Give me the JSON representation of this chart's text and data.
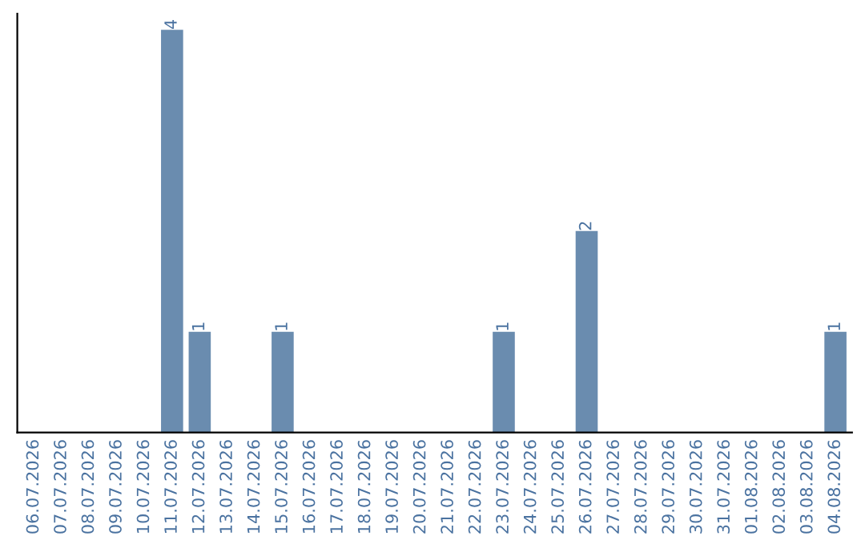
{
  "chart_data": {
    "type": "bar",
    "categories": [
      "06.07.2026",
      "07.07.2026",
      "08.07.2026",
      "09.07.2026",
      "10.07.2026",
      "11.07.2026",
      "12.07.2026",
      "13.07.2026",
      "14.07.2026",
      "15.07.2026",
      "16.07.2026",
      "17.07.2026",
      "18.07.2026",
      "19.07.2026",
      "20.07.2026",
      "21.07.2026",
      "22.07.2026",
      "23.07.2026",
      "24.07.2026",
      "25.07.2026",
      "26.07.2026",
      "27.07.2026",
      "28.07.2026",
      "29.07.2026",
      "30.07.2026",
      "31.07.2026",
      "01.08.2026",
      "02.08.2026",
      "03.08.2026",
      "04.08.2026"
    ],
    "values": [
      0,
      0,
      0,
      0,
      0,
      4,
      1,
      0,
      0,
      1,
      0,
      0,
      0,
      0,
      0,
      0,
      0,
      1,
      0,
      0,
      2,
      0,
      0,
      0,
      0,
      0,
      0,
      0,
      0,
      1
    ],
    "value_labels": [
      null,
      null,
      null,
      null,
      null,
      "4",
      "1",
      null,
      null,
      "1",
      null,
      null,
      null,
      null,
      null,
      null,
      null,
      "1",
      null,
      null,
      "2",
      null,
      null,
      null,
      null,
      null,
      null,
      null,
      null,
      "1"
    ],
    "color": "#6a8caf",
    "grid": false,
    "legend": false
  }
}
